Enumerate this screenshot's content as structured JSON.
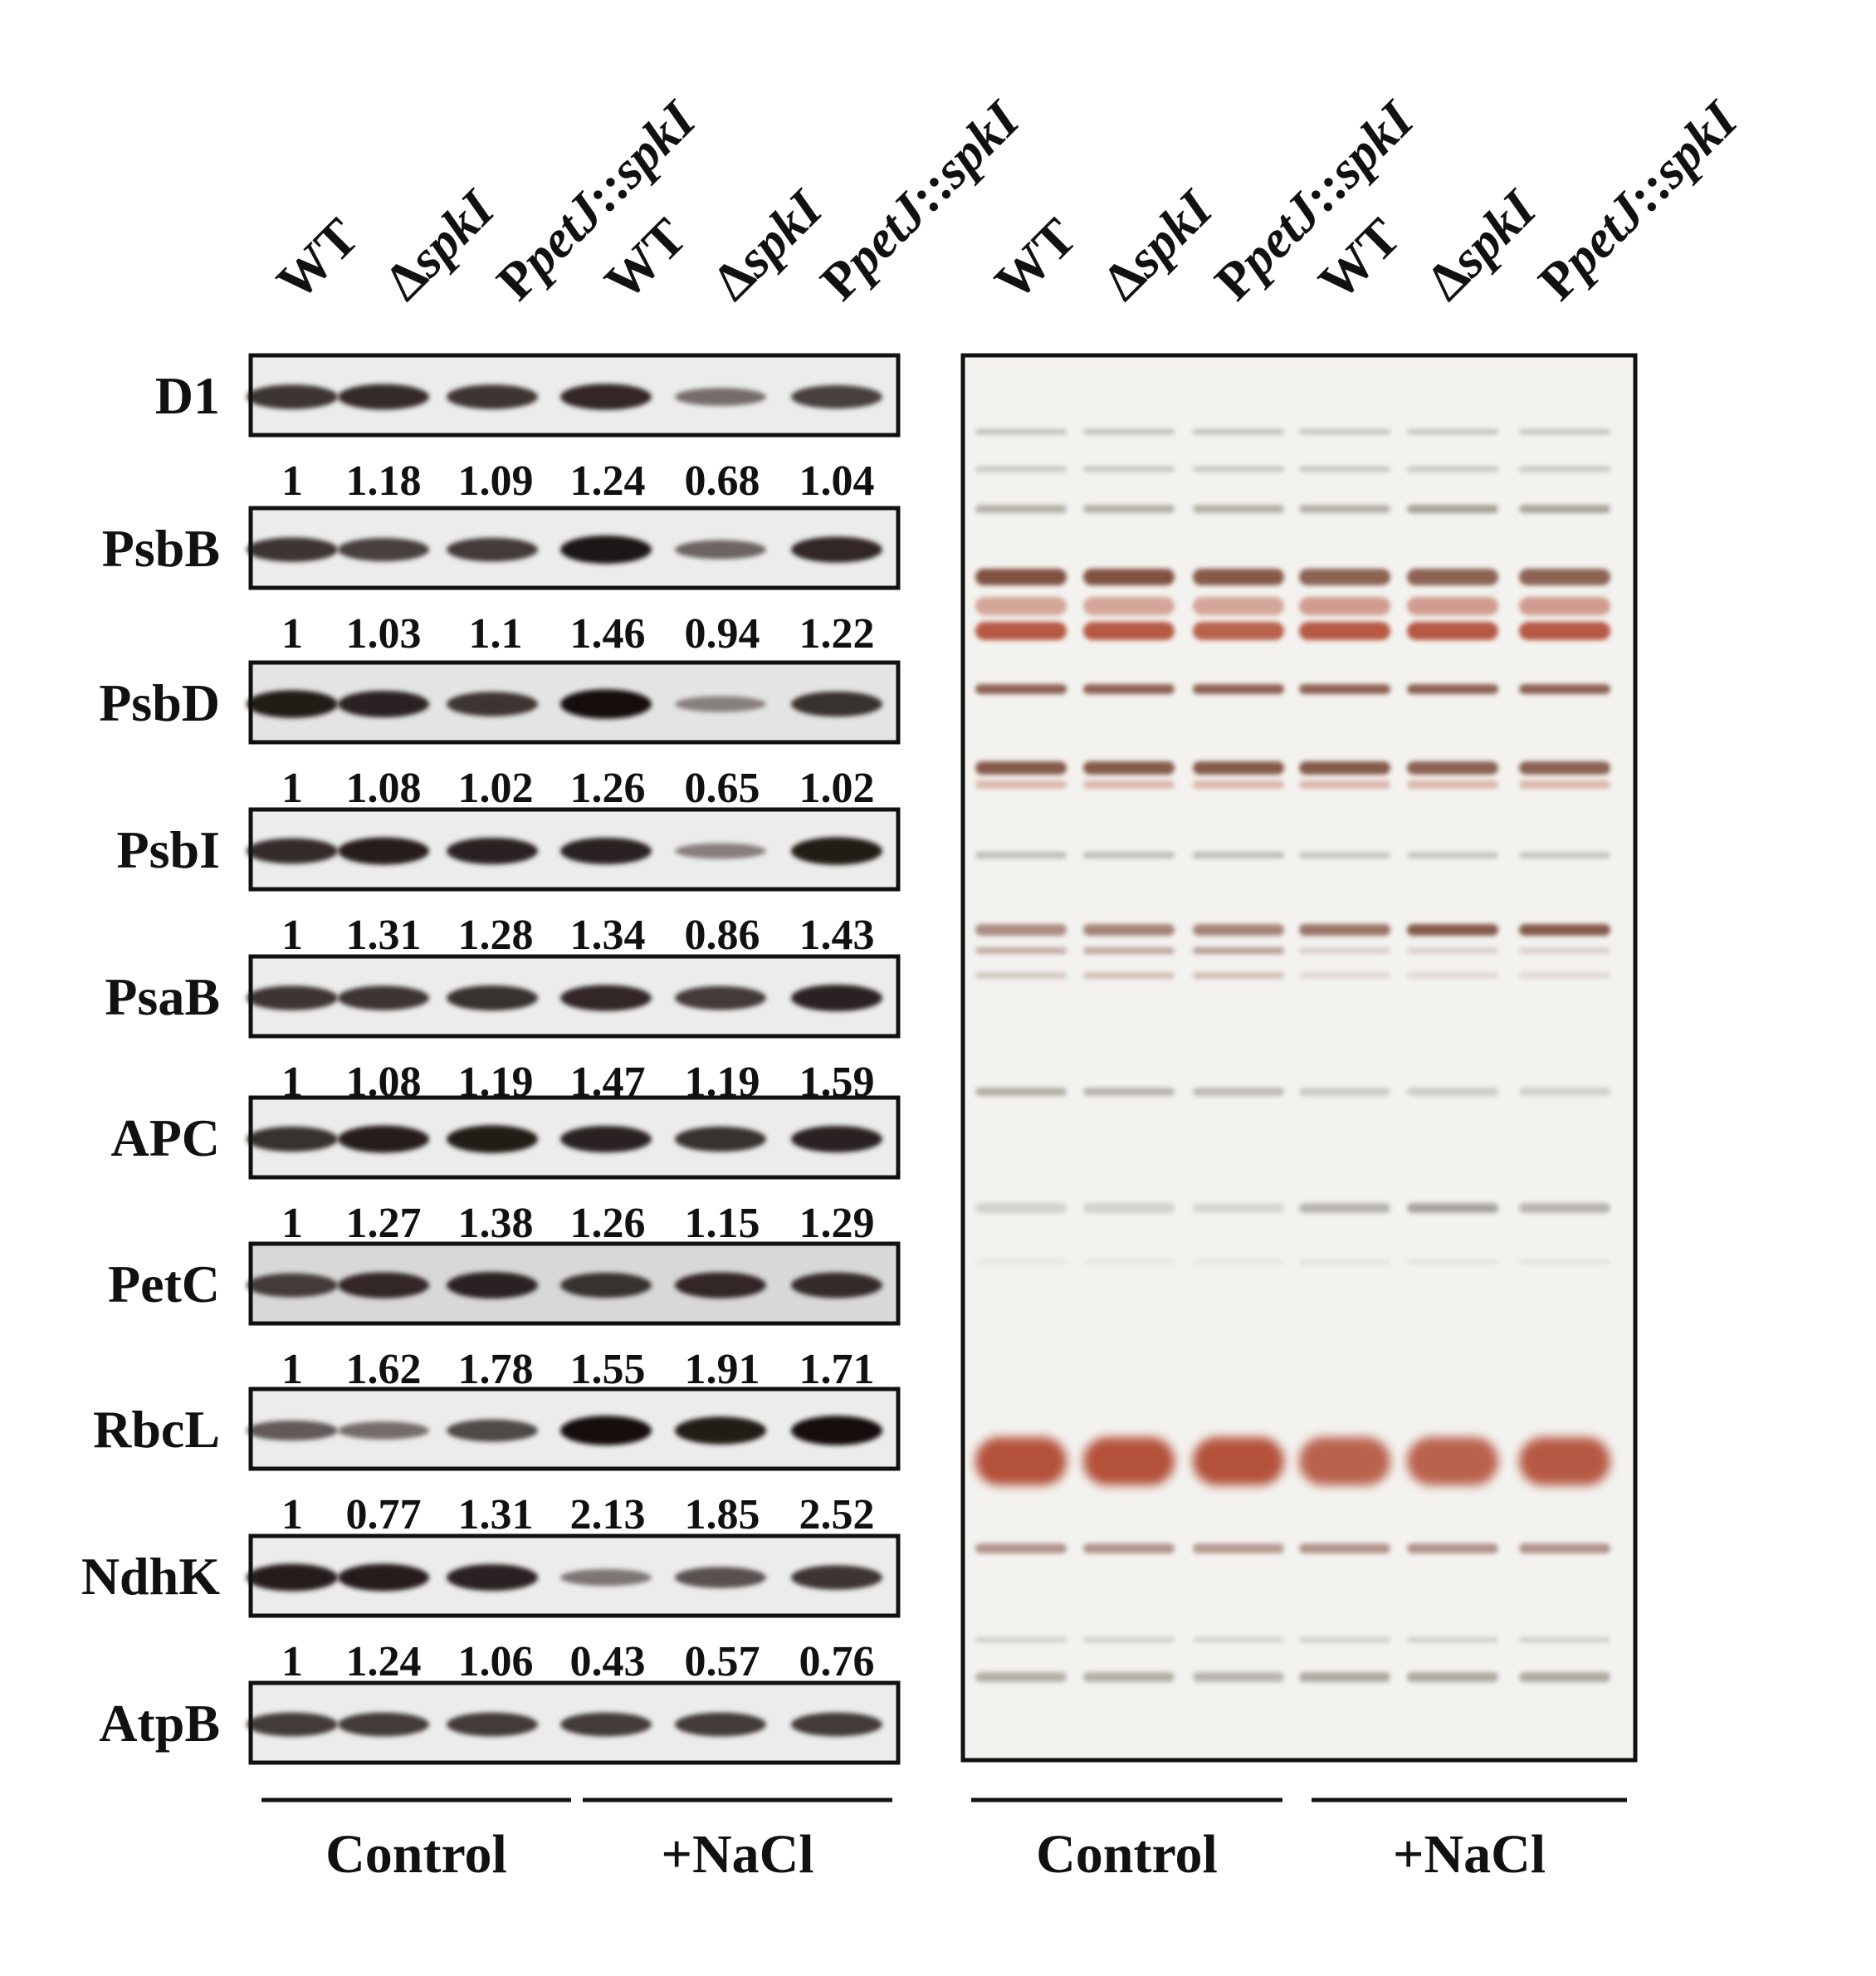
{
  "lanes": [
    {
      "prefix": "",
      "italic": "",
      "suffix": "WT"
    },
    {
      "prefix": "Δ",
      "italic": "spkI",
      "suffix": ""
    },
    {
      "prefix": "P",
      "italic": "petJ",
      "suffix": "::",
      "italic2": "spkI"
    },
    {
      "prefix": "",
      "italic": "",
      "suffix": "WT"
    },
    {
      "prefix": "Δ",
      "italic": "spkI",
      "suffix": ""
    },
    {
      "prefix": "P",
      "italic": "petJ",
      "suffix": "::",
      "italic2": "spkI"
    }
  ],
  "blots": [
    {
      "name": "D1",
      "intensity": [
        0.75,
        0.8,
        0.75,
        0.82,
        0.45,
        0.7
      ],
      "values": [
        "1",
        "1.18",
        "1.09",
        "1.24",
        "0.68",
        "1.04"
      ]
    },
    {
      "name": "PsbB",
      "intensity": [
        0.75,
        0.7,
        0.72,
        0.92,
        0.5,
        0.82
      ],
      "values": [
        "1",
        "1.03",
        "1.1",
        "1.46",
        "0.94",
        "1.22"
      ]
    },
    {
      "name": "PsbD",
      "intensity": [
        0.9,
        0.85,
        0.75,
        0.98,
        0.35,
        0.78
      ],
      "values": [
        "1",
        "1.08",
        "1.02",
        "1.26",
        "0.65",
        "1.02"
      ]
    },
    {
      "name": "PsbI",
      "intensity": [
        0.8,
        0.88,
        0.85,
        0.85,
        0.35,
        0.9
      ],
      "values": [
        "1",
        "1.31",
        "1.28",
        "1.34",
        "0.86",
        "1.43"
      ]
    },
    {
      "name": "PsaB",
      "intensity": [
        0.75,
        0.75,
        0.78,
        0.82,
        0.72,
        0.85
      ],
      "values": [
        "1",
        "1.08",
        "1.19",
        "1.47",
        "1.19",
        "1.59"
      ]
    },
    {
      "name": "APC",
      "intensity": [
        0.78,
        0.88,
        0.9,
        0.85,
        0.78,
        0.85
      ],
      "values": [
        "1",
        "1.27",
        "1.38",
        "1.26",
        "1.15",
        "1.29"
      ]
    },
    {
      "name": "PetC",
      "intensity": [
        0.72,
        0.82,
        0.85,
        0.78,
        0.82,
        0.8
      ],
      "values": [
        "1",
        "1.62",
        "1.78",
        "1.55",
        "1.91",
        "1.71"
      ]
    },
    {
      "name": "RbcL",
      "intensity": [
        0.55,
        0.45,
        0.65,
        0.98,
        0.9,
        0.98
      ],
      "values": [
        "1",
        "0.77",
        "1.31",
        "2.13",
        "1.85",
        "2.52"
      ]
    },
    {
      "name": "NdhK",
      "intensity": [
        0.88,
        0.88,
        0.85,
        0.4,
        0.6,
        0.75
      ],
      "values": [
        "1",
        "1.24",
        "1.06",
        "0.43",
        "0.57",
        "0.76"
      ]
    },
    {
      "name": "AtpB",
      "intensity": [
        0.72,
        0.72,
        0.72,
        0.72,
        0.72,
        0.72
      ],
      "values": []
    }
  ],
  "groups": {
    "left": [
      "Control",
      "+NaCl"
    ],
    "right": [
      "Control",
      "+NaCl"
    ]
  },
  "stain_colors": {
    "brown": "#7a4a38",
    "red": "#b04a32",
    "gray": "#8a8478",
    "lightgray": "#c9c6c0"
  }
}
